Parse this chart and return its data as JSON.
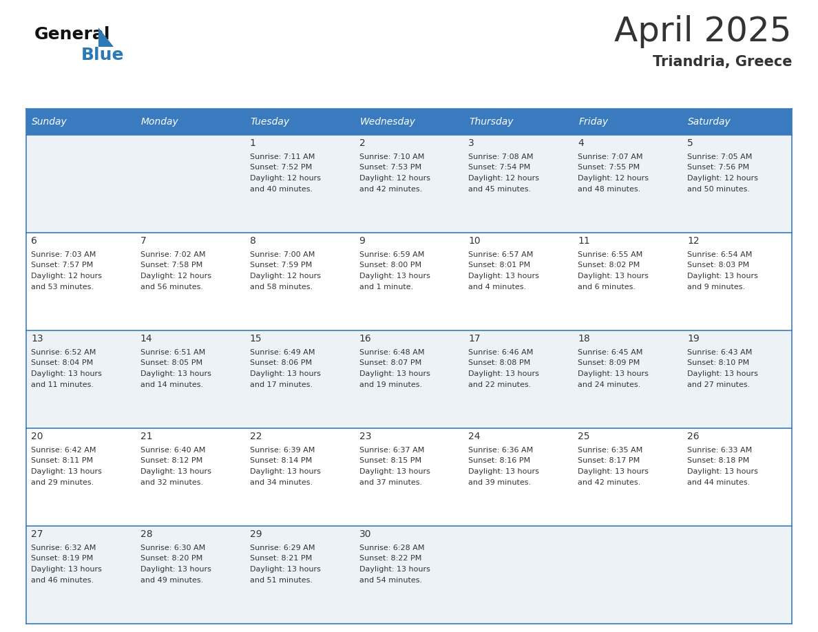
{
  "title": "April 2025",
  "subtitle": "Triandria, Greece",
  "header_color": "#3a7bbf",
  "header_text_color": "#ffffff",
  "day_names": [
    "Sunday",
    "Monday",
    "Tuesday",
    "Wednesday",
    "Thursday",
    "Friday",
    "Saturday"
  ],
  "weeks": [
    [
      {
        "day": null,
        "sunrise": null,
        "sunset": null,
        "daylight1": null,
        "daylight2": null
      },
      {
        "day": null,
        "sunrise": null,
        "sunset": null,
        "daylight1": null,
        "daylight2": null
      },
      {
        "day": 1,
        "sunrise": "7:11 AM",
        "sunset": "7:52 PM",
        "daylight1": "12 hours",
        "daylight2": "and 40 minutes."
      },
      {
        "day": 2,
        "sunrise": "7:10 AM",
        "sunset": "7:53 PM",
        "daylight1": "12 hours",
        "daylight2": "and 42 minutes."
      },
      {
        "day": 3,
        "sunrise": "7:08 AM",
        "sunset": "7:54 PM",
        "daylight1": "12 hours",
        "daylight2": "and 45 minutes."
      },
      {
        "day": 4,
        "sunrise": "7:07 AM",
        "sunset": "7:55 PM",
        "daylight1": "12 hours",
        "daylight2": "and 48 minutes."
      },
      {
        "day": 5,
        "sunrise": "7:05 AM",
        "sunset": "7:56 PM",
        "daylight1": "12 hours",
        "daylight2": "and 50 minutes."
      }
    ],
    [
      {
        "day": 6,
        "sunrise": "7:03 AM",
        "sunset": "7:57 PM",
        "daylight1": "12 hours",
        "daylight2": "and 53 minutes."
      },
      {
        "day": 7,
        "sunrise": "7:02 AM",
        "sunset": "7:58 PM",
        "daylight1": "12 hours",
        "daylight2": "and 56 minutes."
      },
      {
        "day": 8,
        "sunrise": "7:00 AM",
        "sunset": "7:59 PM",
        "daylight1": "12 hours",
        "daylight2": "and 58 minutes."
      },
      {
        "day": 9,
        "sunrise": "6:59 AM",
        "sunset": "8:00 PM",
        "daylight1": "13 hours",
        "daylight2": "and 1 minute."
      },
      {
        "day": 10,
        "sunrise": "6:57 AM",
        "sunset": "8:01 PM",
        "daylight1": "13 hours",
        "daylight2": "and 4 minutes."
      },
      {
        "day": 11,
        "sunrise": "6:55 AM",
        "sunset": "8:02 PM",
        "daylight1": "13 hours",
        "daylight2": "and 6 minutes."
      },
      {
        "day": 12,
        "sunrise": "6:54 AM",
        "sunset": "8:03 PM",
        "daylight1": "13 hours",
        "daylight2": "and 9 minutes."
      }
    ],
    [
      {
        "day": 13,
        "sunrise": "6:52 AM",
        "sunset": "8:04 PM",
        "daylight1": "13 hours",
        "daylight2": "and 11 minutes."
      },
      {
        "day": 14,
        "sunrise": "6:51 AM",
        "sunset": "8:05 PM",
        "daylight1": "13 hours",
        "daylight2": "and 14 minutes."
      },
      {
        "day": 15,
        "sunrise": "6:49 AM",
        "sunset": "8:06 PM",
        "daylight1": "13 hours",
        "daylight2": "and 17 minutes."
      },
      {
        "day": 16,
        "sunrise": "6:48 AM",
        "sunset": "8:07 PM",
        "daylight1": "13 hours",
        "daylight2": "and 19 minutes."
      },
      {
        "day": 17,
        "sunrise": "6:46 AM",
        "sunset": "8:08 PM",
        "daylight1": "13 hours",
        "daylight2": "and 22 minutes."
      },
      {
        "day": 18,
        "sunrise": "6:45 AM",
        "sunset": "8:09 PM",
        "daylight1": "13 hours",
        "daylight2": "and 24 minutes."
      },
      {
        "day": 19,
        "sunrise": "6:43 AM",
        "sunset": "8:10 PM",
        "daylight1": "13 hours",
        "daylight2": "and 27 minutes."
      }
    ],
    [
      {
        "day": 20,
        "sunrise": "6:42 AM",
        "sunset": "8:11 PM",
        "daylight1": "13 hours",
        "daylight2": "and 29 minutes."
      },
      {
        "day": 21,
        "sunrise": "6:40 AM",
        "sunset": "8:12 PM",
        "daylight1": "13 hours",
        "daylight2": "and 32 minutes."
      },
      {
        "day": 22,
        "sunrise": "6:39 AM",
        "sunset": "8:14 PM",
        "daylight1": "13 hours",
        "daylight2": "and 34 minutes."
      },
      {
        "day": 23,
        "sunrise": "6:37 AM",
        "sunset": "8:15 PM",
        "daylight1": "13 hours",
        "daylight2": "and 37 minutes."
      },
      {
        "day": 24,
        "sunrise": "6:36 AM",
        "sunset": "8:16 PM",
        "daylight1": "13 hours",
        "daylight2": "and 39 minutes."
      },
      {
        "day": 25,
        "sunrise": "6:35 AM",
        "sunset": "8:17 PM",
        "daylight1": "13 hours",
        "daylight2": "and 42 minutes."
      },
      {
        "day": 26,
        "sunrise": "6:33 AM",
        "sunset": "8:18 PM",
        "daylight1": "13 hours",
        "daylight2": "and 44 minutes."
      }
    ],
    [
      {
        "day": 27,
        "sunrise": "6:32 AM",
        "sunset": "8:19 PM",
        "daylight1": "13 hours",
        "daylight2": "and 46 minutes."
      },
      {
        "day": 28,
        "sunrise": "6:30 AM",
        "sunset": "8:20 PM",
        "daylight1": "13 hours",
        "daylight2": "and 49 minutes."
      },
      {
        "day": 29,
        "sunrise": "6:29 AM",
        "sunset": "8:21 PM",
        "daylight1": "13 hours",
        "daylight2": "and 51 minutes."
      },
      {
        "day": 30,
        "sunrise": "6:28 AM",
        "sunset": "8:22 PM",
        "daylight1": "13 hours",
        "daylight2": "and 54 minutes."
      },
      {
        "day": null,
        "sunrise": null,
        "sunset": null,
        "daylight1": null,
        "daylight2": null
      },
      {
        "day": null,
        "sunrise": null,
        "sunset": null,
        "daylight1": null,
        "daylight2": null
      },
      {
        "day": null,
        "sunrise": null,
        "sunset": null,
        "daylight1": null,
        "daylight2": null
      }
    ]
  ],
  "cell_bg_odd": "#edf2f7",
  "cell_bg_even": "#ffffff",
  "border_color": "#3a7bbf",
  "text_color": "#333333",
  "logo_general_color": "#111111",
  "logo_blue_color": "#2c7ab5",
  "title_fontsize": 36,
  "subtitle_fontsize": 15,
  "header_fontsize": 10,
  "day_num_fontsize": 10,
  "cell_text_fontsize": 8
}
